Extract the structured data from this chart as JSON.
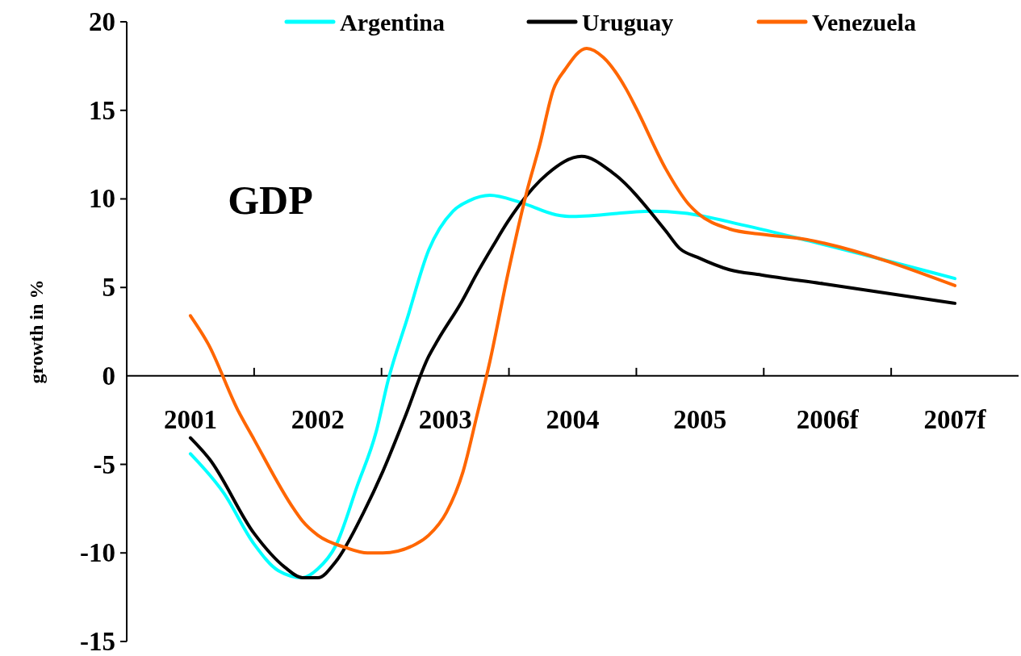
{
  "chart_data": {
    "type": "line",
    "ylabel": "growth in %",
    "annotations": [
      "GDP"
    ],
    "xlim": [
      2000.5,
      2007.5
    ],
    "xticks": [
      {
        "value": 2001,
        "label": "2001"
      },
      {
        "value": 2001.5,
        "label": null
      },
      {
        "value": 2002,
        "label": "2002"
      },
      {
        "value": 2002.5,
        "label": null
      },
      {
        "value": 2003,
        "label": "2003"
      },
      {
        "value": 2003.5,
        "label": null
      },
      {
        "value": 2004,
        "label": "2004"
      },
      {
        "value": 2004.5,
        "label": null
      },
      {
        "value": 2005,
        "label": "2005"
      },
      {
        "value": 2005.5,
        "label": null
      },
      {
        "value": 2006,
        "label": "2006f"
      },
      {
        "value": 2006.5,
        "label": null
      },
      {
        "value": 2007,
        "label": "2007f"
      }
    ],
    "ylim": [
      -15,
      20
    ],
    "yticks": [
      -15,
      -10,
      -5,
      0,
      5,
      10,
      15,
      20
    ],
    "grid": false,
    "legend": "top",
    "marker": "none",
    "line_style": "solid",
    "series": [
      {
        "name": "Argentina",
        "color": "#00ffff",
        "x": [
          2001,
          2001.26,
          2001.5,
          2001.69,
          2001.88,
          2002,
          2002.14,
          2002.31,
          2002.46,
          2002.55,
          2002.7,
          2002.87,
          2003.06,
          2003.19,
          2003.35,
          2003.59,
          2003.87,
          2004,
          2004.62,
          2004.87,
          2005.35,
          2005.87,
          2007
        ],
        "values": [
          -4.4,
          -6.6,
          -9.5,
          -11,
          -11.4,
          -10.9,
          -9.6,
          -6.2,
          -3.1,
          -0.3,
          3.2,
          7.1,
          9.3,
          9.9,
          10.2,
          9.8,
          9.1,
          9,
          9.3,
          9.2,
          8.5,
          7.6,
          5.5
        ]
      },
      {
        "name": "Uruguay",
        "color": "#000000",
        "x": [
          2001,
          2001.15,
          2001.5,
          2001.74,
          2001.88,
          2002,
          2002.14,
          2002.36,
          2002.51,
          2002.68,
          2002.87,
          2002.94,
          2003.13,
          2003.25,
          2003.38,
          2003.49,
          2003.8,
          2004.07,
          2004.31,
          2004.73,
          2004.84,
          2004.98,
          2005.23,
          2005.48,
          2005.97,
          2007
        ],
        "values": [
          -3.5,
          -4.7,
          -8.9,
          -10.8,
          -11.4,
          -11.4,
          -10.5,
          -7.7,
          -5.4,
          -2.4,
          1.1,
          2,
          4.2,
          5.8,
          7.4,
          8.7,
          11.4,
          12.4,
          11.5,
          8.2,
          7.2,
          6.7,
          6,
          5.7,
          5.2,
          4.1
        ]
      },
      {
        "name": "Venezuela",
        "color": "#ff6600",
        "x": [
          2001,
          2001.14,
          2001.37,
          2001.5,
          2001.81,
          2001.88,
          2002,
          2002.22,
          2002.39,
          2002.51,
          2002.77,
          2002.87,
          2003.01,
          2003.14,
          2003.25,
          2003.35,
          2003.49,
          2003.64,
          2003.74,
          2003.85,
          2003.94,
          2004.11,
          2004.24,
          2004.42,
          2004.5,
          2004.73,
          2004.91,
          2004.98,
          2005.23,
          2005.48,
          2005.84,
          2005.97,
          2007
        ],
        "values": [
          3.4,
          1.8,
          -1.9,
          -3.6,
          -7.5,
          -8.2,
          -9,
          -9.7,
          -10,
          -10,
          -9.5,
          -9,
          -7.7,
          -5.4,
          -2.2,
          0.8,
          5.7,
          10.4,
          13,
          16.2,
          17.3,
          18.5,
          18,
          16.2,
          15.1,
          11.7,
          9.7,
          9.2,
          8.3,
          8,
          7.7,
          7.5,
          5.1
        ]
      }
    ]
  }
}
